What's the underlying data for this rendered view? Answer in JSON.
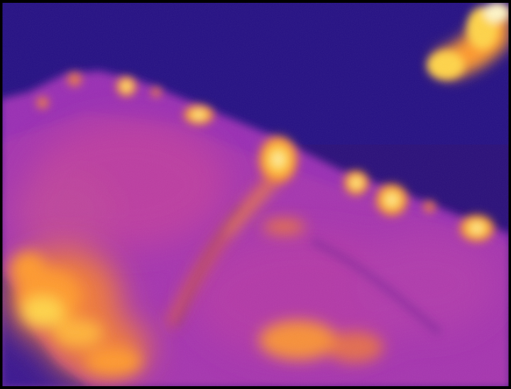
{
  "image": {
    "kind": "thermal-infrared-photo",
    "palette": "ironbow",
    "colors": {
      "border": "#000000",
      "background_cold": "#2a0f7a",
      "background_cold_deep": "#1e0a66",
      "body_mid": "#9a2fb4",
      "body_warm": "#c2409e",
      "warm_orange": "#f07a3a",
      "hot_orange": "#ff9a2e",
      "hot_yellow": "#ffd44a",
      "hottest_white": "#fff6c8"
    }
  }
}
